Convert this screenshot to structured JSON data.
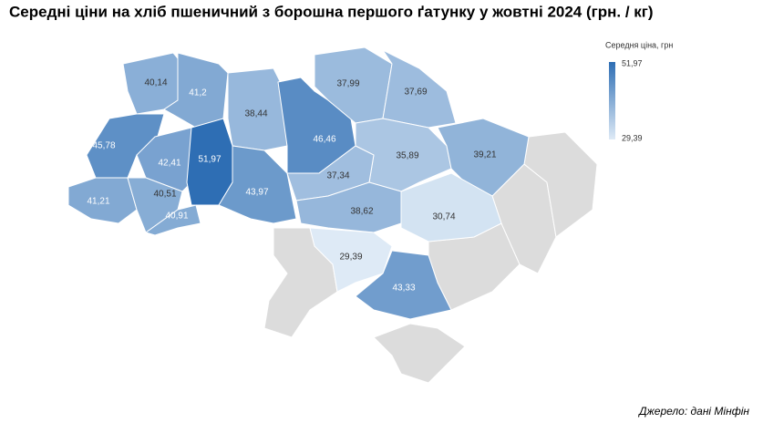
{
  "chart_data": {
    "type": "map",
    "title": "Середні ціни на хліб пшеничний з борошна першого ґатунку у жовтні 2024 (грн. / кг)",
    "legend": {
      "title": "Середня ціна, грн",
      "max": {
        "value": 51.97,
        "label": "51,97"
      },
      "min": {
        "value": 29.39,
        "label": "29,39"
      }
    },
    "values": [
      40.14,
      41.2,
      38.44,
      46.46,
      37.99,
      37.69,
      45.78,
      42.41,
      51.97,
      35.89,
      39.21,
      37.34,
      43.97,
      41.21,
      40.51,
      40.91,
      38.62,
      30.74,
      29.39,
      43.33
    ],
    "value_labels": [
      "40,14",
      "41,2",
      "38,44",
      "46,46",
      "37,99",
      "37,69",
      "45,78",
      "42,41",
      "51,97",
      "35,89",
      "39,21",
      "37,34",
      "43,97",
      "41,21",
      "40,51",
      "40,91",
      "38,62",
      "30,74",
      "29,39",
      "43,33"
    ],
    "source": "Джерело: дані Мінфін"
  }
}
